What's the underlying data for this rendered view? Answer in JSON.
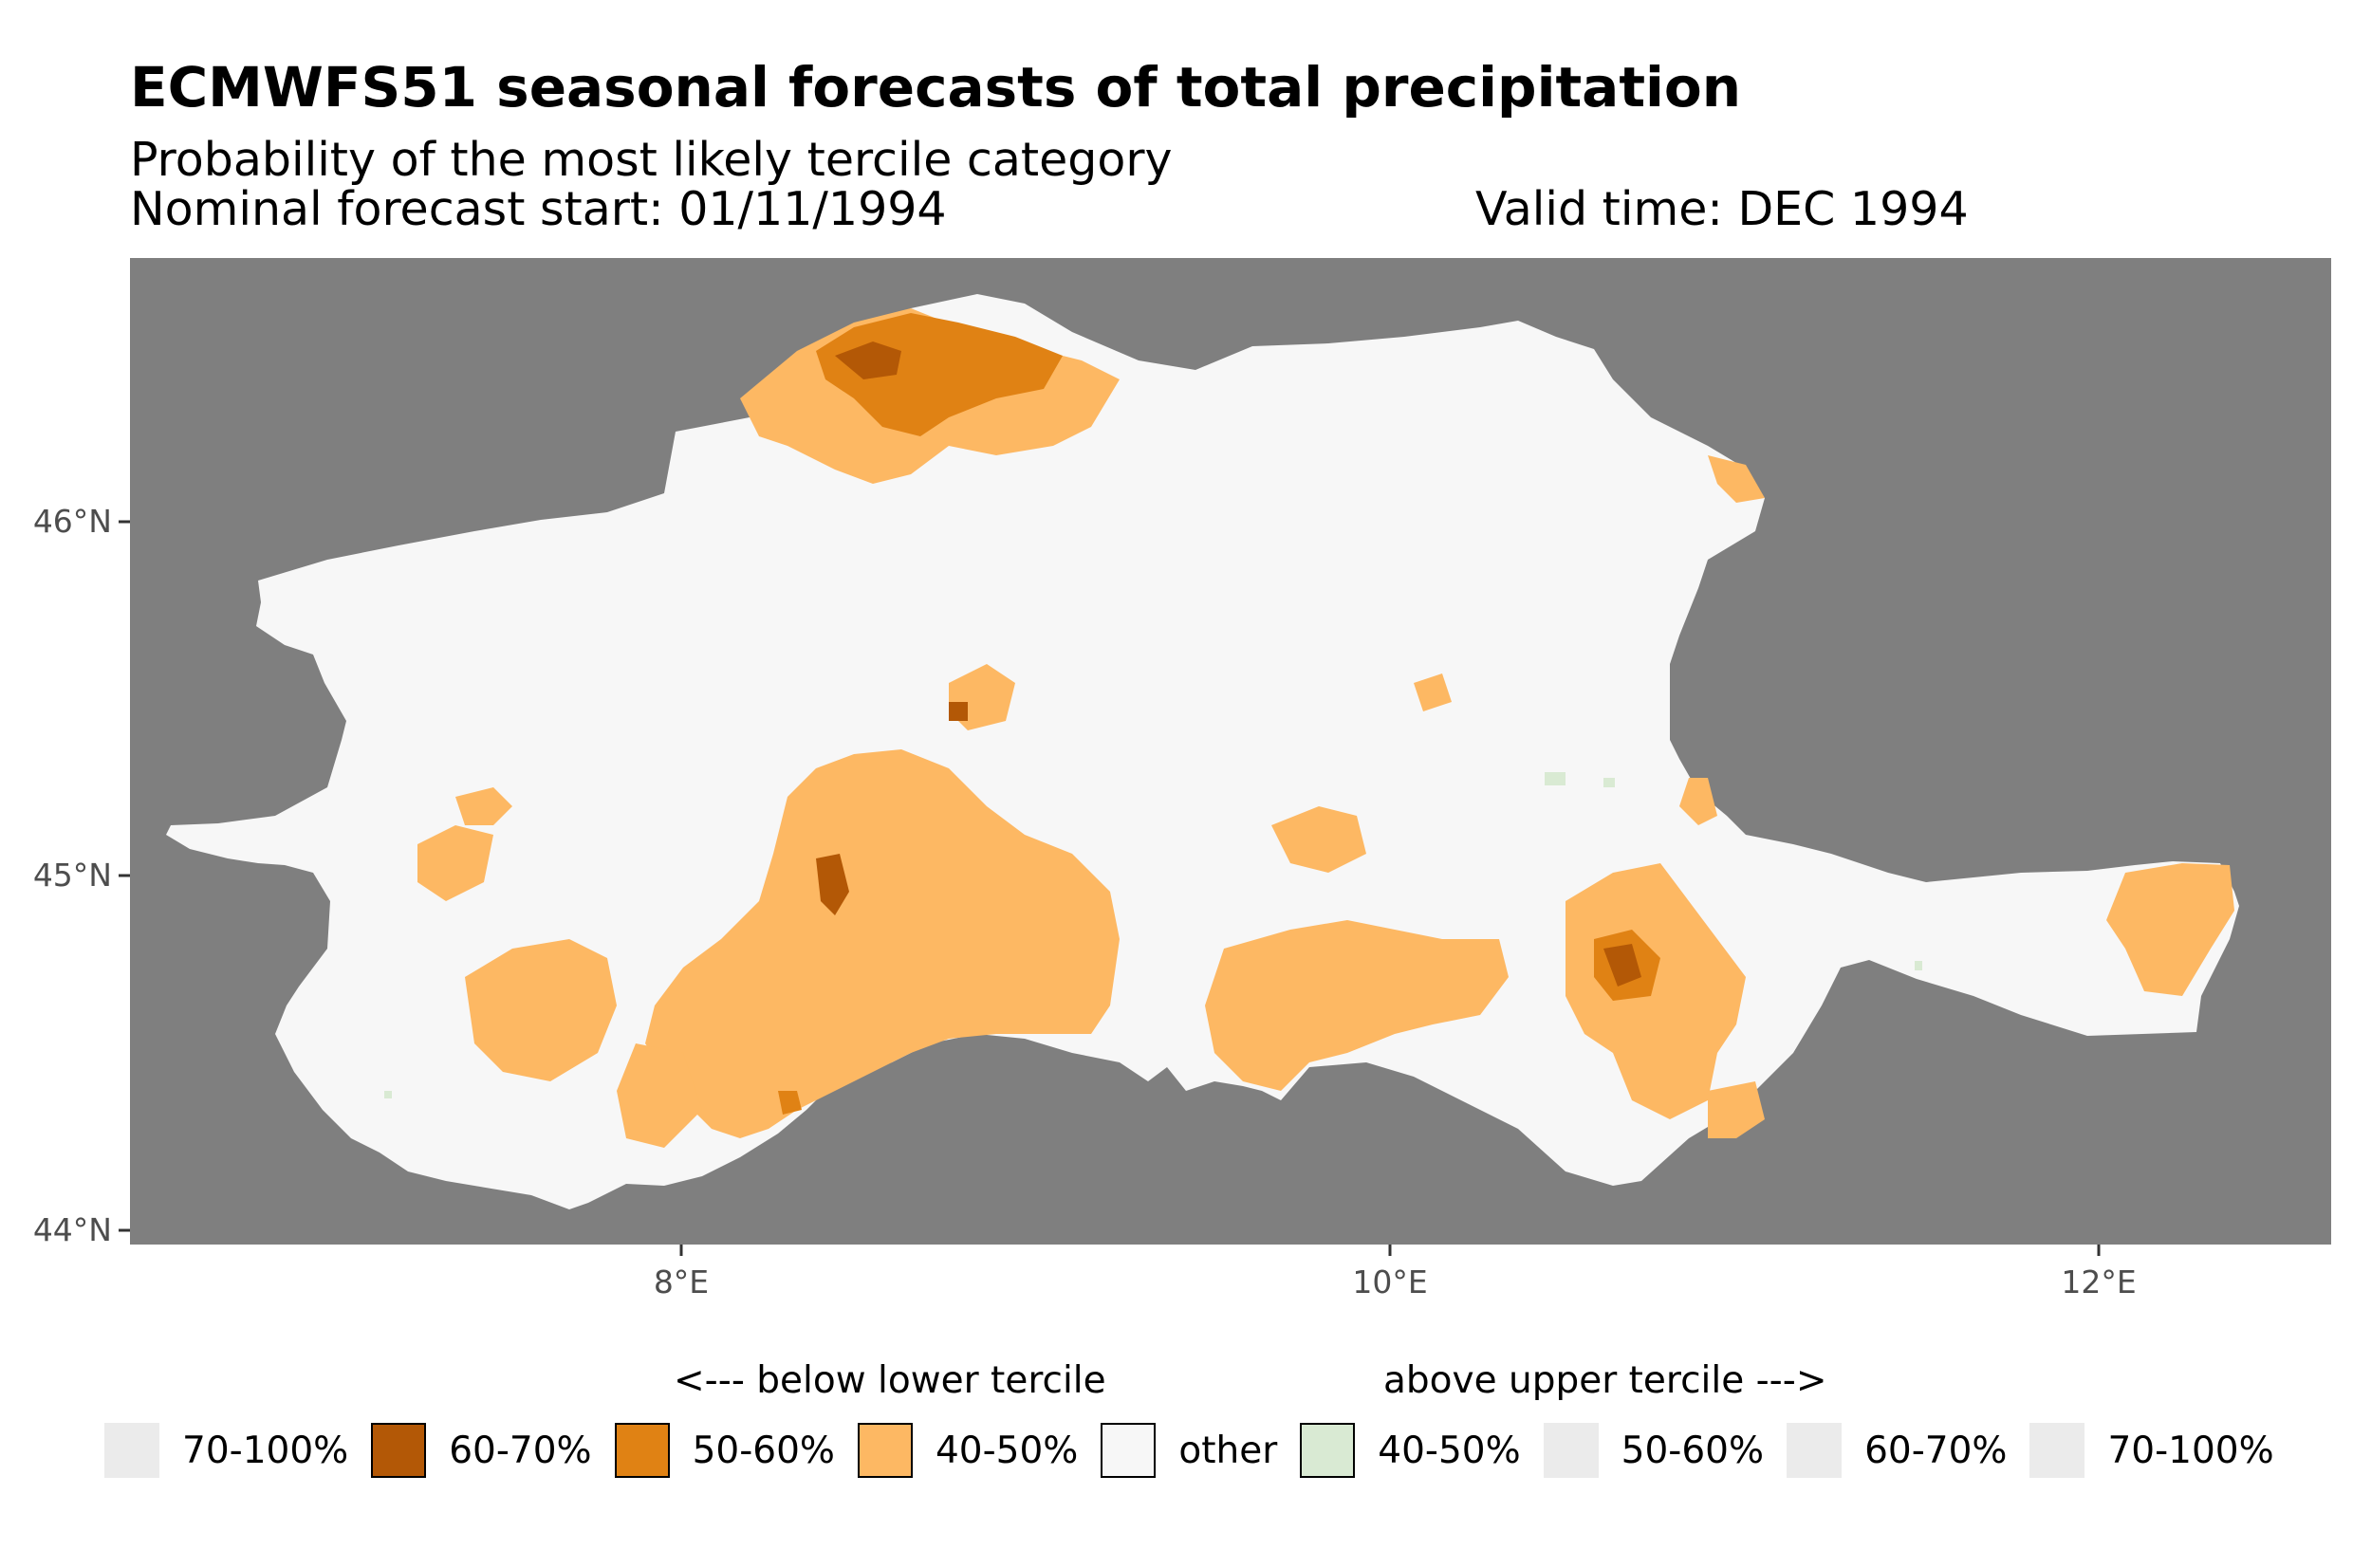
{
  "header": {
    "title": "ECMWFS51 seasonal forecasts of total precipitation",
    "subtitle": "Probability of the most likely tercile category",
    "forecast_start": "Nominal forecast start: 01/11/1994",
    "valid_time": "Valid time: DEC 1994"
  },
  "map": {
    "background_color": "#7f7f7f",
    "region_color": "#f7f7f7",
    "axes": {
      "y_ticks": [
        "46°N",
        "45°N",
        "44°N"
      ],
      "x_ticks": [
        "8°E",
        "10°E",
        "12°E"
      ],
      "lat_range": [
        43.95,
        46.74
      ],
      "lon_range": [
        6.45,
        12.65
      ]
    },
    "category_colors": {
      "below_60_70": "#b35806",
      "below_50_60": "#e08214",
      "below_40_50": "#fdb863",
      "other": "#f7f7f7",
      "above_40_50": "#d9ead3"
    }
  },
  "legend": {
    "below_heading": "<--- below lower tercile",
    "above_heading": "above upper tercile --->",
    "items": [
      {
        "label": "70-100%",
        "color": "#ebebeb",
        "outlined": false
      },
      {
        "label": "60-70%",
        "color": "#b35806",
        "outlined": true
      },
      {
        "label": "50-60%",
        "color": "#e08214",
        "outlined": true
      },
      {
        "label": "40-50%",
        "color": "#fdb863",
        "outlined": true
      },
      {
        "label": "other",
        "color": "#f7f7f7",
        "outlined": true
      },
      {
        "label": "40-50%",
        "color": "#d9ead3",
        "outlined": true
      },
      {
        "label": "50-60%",
        "color": "#ebebeb",
        "outlined": false
      },
      {
        "label": "60-70%",
        "color": "#ebebeb",
        "outlined": false
      },
      {
        "label": "70-100%",
        "color": "#ebebeb",
        "outlined": false
      }
    ]
  }
}
